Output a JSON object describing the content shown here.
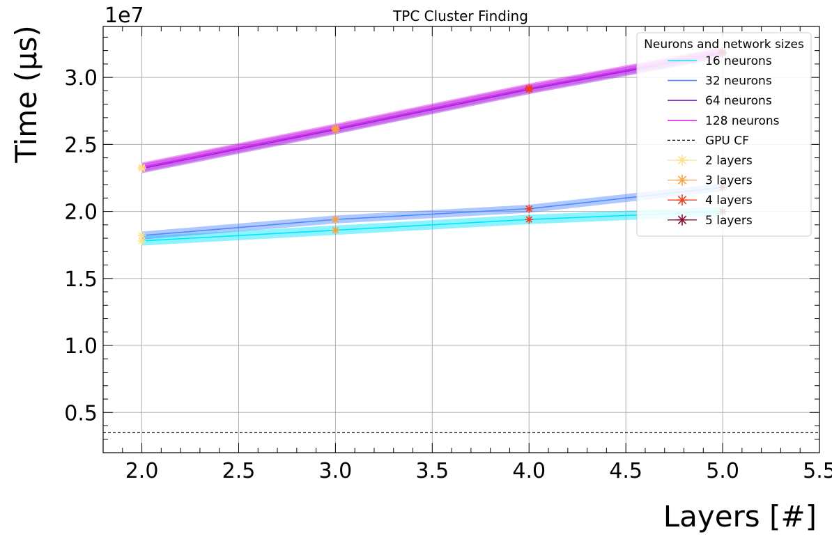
{
  "chart_data": {
    "type": "line",
    "title": "TPC Cluster Finding",
    "xlabel": "Layers [#]",
    "ylabel": "Time (μs)",
    "y_scale_label": "1e7",
    "xlim": [
      1.8,
      5.5
    ],
    "ylim": [
      0.2,
      3.38
    ],
    "x_ticks": [
      2.0,
      2.5,
      3.0,
      3.5,
      4.0,
      4.5,
      5.0,
      5.5
    ],
    "y_ticks": [
      0.5,
      1.0,
      1.5,
      2.0,
      2.5,
      3.0
    ],
    "x_tick_labels": [
      "2.0",
      "2.5",
      "3.0",
      "3.5",
      "4.0",
      "4.5",
      "5.0",
      "5.5"
    ],
    "y_tick_labels": [
      "0.5",
      "1.0",
      "1.5",
      "2.0",
      "2.5",
      "3.0"
    ],
    "grid": true,
    "legend_title": "Neurons and network sizes",
    "legend_position": "top-right",
    "x": [
      2,
      3,
      4,
      5
    ],
    "series": [
      {
        "name": "16 neurons",
        "color": "#00e5ff",
        "values": [
          1.78,
          1.86,
          1.94,
          2.0
        ],
        "band": 0.035
      },
      {
        "name": "32 neurons",
        "color": "#4d88ff",
        "values": [
          1.82,
          1.94,
          2.02,
          2.18
        ],
        "band": 0.03
      },
      {
        "name": "64 neurons",
        "color": "#8a2be2",
        "values": [
          2.32,
          2.61,
          2.91,
          3.18
        ],
        "band": 0.035
      },
      {
        "name": "128 neurons",
        "color": "#e020e8",
        "values": [
          2.33,
          2.62,
          2.92,
          3.19
        ],
        "band": 0.035
      }
    ],
    "reference_line": {
      "name": "GPU CF",
      "value": 0.35,
      "color": "#000000",
      "style": "dashed"
    },
    "layer_markers": [
      {
        "name": "2 layers",
        "color": "#ffe08a"
      },
      {
        "name": "3 layers",
        "color": "#f8a040"
      },
      {
        "name": "4 layers",
        "color": "#f03c20"
      },
      {
        "name": "5 layers",
        "color": "#8b0a2a"
      }
    ]
  }
}
